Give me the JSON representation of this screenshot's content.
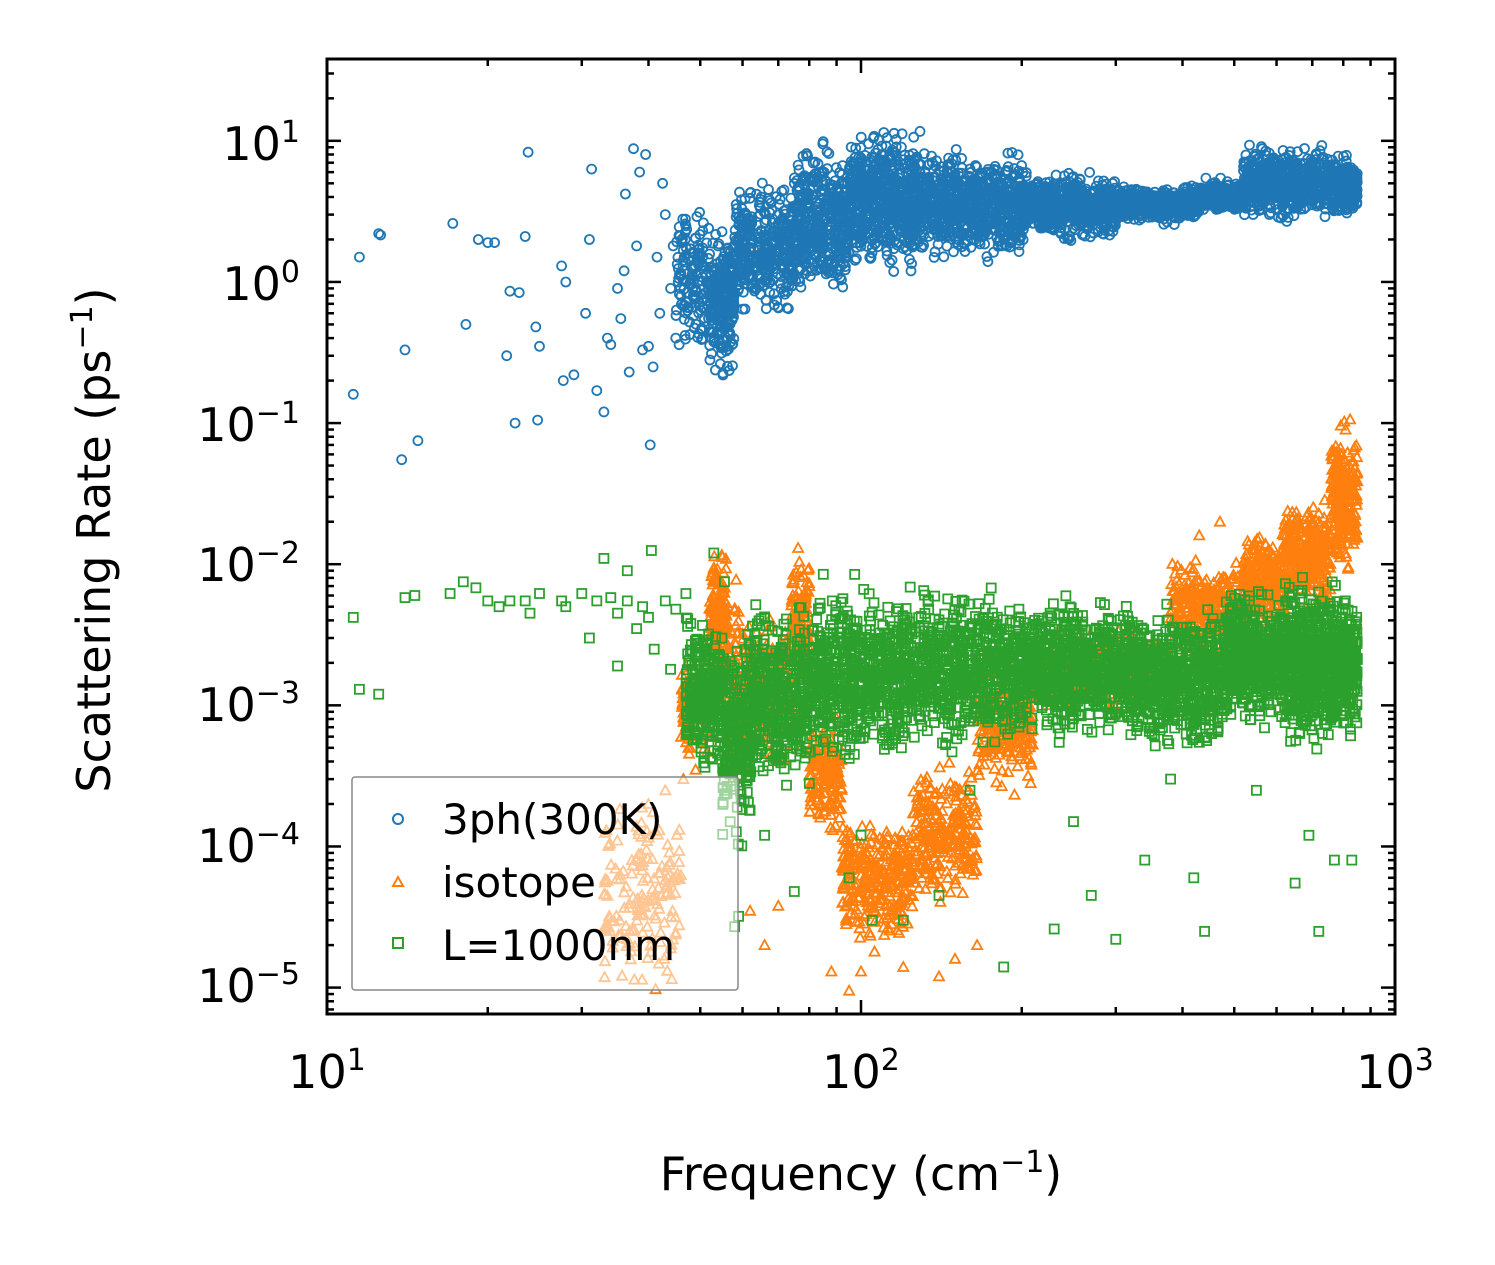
{
  "chart_data": {
    "type": "scatter",
    "title": "",
    "xlabel": "Frequency (cm",
    "xlabel_exp": "−1",
    "xlabel_close": ")",
    "ylabel": "Scattering Rate (ps",
    "ylabel_exp": "−1",
    "ylabel_close": ")",
    "xscale": "log",
    "yscale": "log",
    "xlim": [
      10,
      1000
    ],
    "ylim": [
      6.5e-06,
      38
    ],
    "x_ticks": [
      {
        "value": 10,
        "base": "10",
        "exp": "1"
      },
      {
        "value": 100,
        "base": "10",
        "exp": "2"
      },
      {
        "value": 1000,
        "base": "10",
        "exp": "3"
      }
    ],
    "y_ticks": [
      {
        "value": 10,
        "base": "10",
        "exp": "1"
      },
      {
        "value": 1,
        "base": "10",
        "exp": "0"
      },
      {
        "value": 0.1,
        "base": "10",
        "exp": "−1"
      },
      {
        "value": 0.01,
        "base": "10",
        "exp": "−2"
      },
      {
        "value": 0.001,
        "base": "10",
        "exp": "−3"
      },
      {
        "value": 0.0001,
        "base": "10",
        "exp": "−4"
      },
      {
        "value": 1e-05,
        "base": "10",
        "exp": "−5"
      }
    ],
    "legend_position": "lower-left",
    "series": [
      {
        "name": "3ph(300K)",
        "marker": "circle",
        "color": "#1f77b4",
        "points": [
          [
            11.2,
            0.16
          ],
          [
            11.5,
            1.5
          ],
          [
            12.5,
            2.2
          ],
          [
            13.8,
            0.055
          ],
          [
            14.0,
            0.33
          ],
          [
            14.8,
            0.075
          ],
          [
            17.2,
            2.6
          ],
          [
            18.2,
            0.5
          ],
          [
            19.2,
            2.0
          ],
          [
            20.0,
            1.9
          ],
          [
            20.6,
            1.9
          ],
          [
            21.7,
            0.3
          ],
          [
            22.0,
            0.86
          ],
          [
            22.5,
            0.1
          ],
          [
            22.9,
            0.84
          ],
          [
            23.5,
            2.1
          ],
          [
            23.8,
            8.3
          ],
          [
            24.6,
            0.48
          ],
          [
            24.8,
            0.105
          ],
          [
            25.0,
            0.35
          ],
          [
            27.5,
            1.3
          ],
          [
            27.7,
            0.2
          ],
          [
            28.0,
            1.0
          ],
          [
            29.0,
            0.22
          ],
          [
            30.5,
            0.6
          ],
          [
            31.0,
            2.0
          ],
          [
            31.3,
            6.3
          ],
          [
            32.0,
            0.17
          ],
          [
            33.0,
            0.12
          ],
          [
            33.5,
            0.4
          ],
          [
            34.0,
            0.36
          ],
          [
            35.0,
            0.9
          ],
          [
            35.5,
            0.55
          ],
          [
            36.0,
            1.2
          ],
          [
            36.8,
            0.23
          ],
          [
            37.5,
            8.8
          ],
          [
            38.5,
            6.0
          ],
          [
            39.0,
            0.33
          ],
          [
            39.5,
            8.0
          ],
          [
            40.0,
            0.35
          ],
          [
            40.3,
            0.07
          ],
          [
            40.8,
            0.25
          ],
          [
            41.5,
            1.5
          ],
          [
            42.0,
            0.6
          ],
          [
            43.0,
            3.0
          ],
          [
            44.0,
            0.9
          ],
          [
            45.0,
            0.4
          ],
          [
            46.0,
            1.1
          ],
          [
            47.0,
            2.5
          ],
          [
            12.6,
            2.15
          ],
          [
            42.5,
            5.0
          ],
          [
            44.5,
            1.8
          ],
          [
            38.0,
            1.8
          ],
          [
            36.2,
            4.2
          ]
        ],
        "dense_bands": [
          {
            "x": [
              45,
              52
            ],
            "y": [
              0.25,
              4.5
            ],
            "n": 140
          },
          {
            "x": [
              52,
              58
            ],
            "y": [
              0.18,
              3.0
            ],
            "n": 240
          },
          {
            "x": [
              58,
              75
            ],
            "y": [
              0.45,
              6.0
            ],
            "n": 360
          },
          {
            "x": [
              75,
              95
            ],
            "y": [
              0.6,
              12.0
            ],
            "n": 420
          },
          {
            "x": [
              95,
              130
            ],
            "y": [
              1.0,
              15.0
            ],
            "n": 620
          },
          {
            "x": [
              130,
              200
            ],
            "y": [
              1.2,
              10.0
            ],
            "n": 700
          },
          {
            "x": [
              200,
              300
            ],
            "y": [
              1.8,
              6.5
            ],
            "n": 620
          },
          {
            "x": [
              300,
              430
            ],
            "y": [
              2.5,
              5.0
            ],
            "n": 560
          },
          {
            "x": [
              430,
              520
            ],
            "y": [
              3.0,
              5.5
            ],
            "n": 360
          },
          {
            "x": [
              520,
              820
            ],
            "y": [
              2.5,
              10.0
            ],
            "n": 700
          },
          {
            "x": [
              820,
              850
            ],
            "y": [
              3.0,
              7.0
            ],
            "n": 120
          }
        ]
      },
      {
        "name": "isotope",
        "marker": "triangle",
        "color": "#ff7f0e",
        "points": [
          [
            46.5,
            0.0003
          ],
          [
            47.5,
            0.0005
          ],
          [
            49.0,
            0.00035
          ],
          [
            62.0,
            3.5e-05
          ],
          [
            66.0,
            2e-05
          ],
          [
            70.0,
            3.8e-05
          ],
          [
            88.0,
            1.3e-05
          ],
          [
            95.0,
            9.5e-06
          ],
          [
            100.0,
            1.3e-05
          ],
          [
            106.0,
            1.8e-05
          ],
          [
            120.0,
            1.4e-05
          ],
          [
            140.0,
            1.2e-05
          ],
          [
            150.0,
            1.6e-05
          ],
          [
            165.0,
            2e-05
          ],
          [
            430.0,
            0.016
          ],
          [
            470.0,
            0.02
          ],
          [
            525.0,
            0.011
          ],
          [
            560.0,
            0.0115
          ],
          [
            620.0,
            0.016
          ],
          [
            40.0,
            0.0002
          ],
          [
            43.0,
            0.00025
          ],
          [
            57.5,
            0.0025
          ],
          [
            61.0,
            0.0014
          ],
          [
            122.0,
            8e-05
          ],
          [
            130.0,
            6e-05
          ]
        ],
        "dense_bands": [
          {
            "x": [
              33,
              46
            ],
            "y": [
              6.5e-06,
              0.0003
            ],
            "n": 170
          },
          {
            "x": [
              46,
              52
            ],
            "y": [
              0.0003,
              0.003
            ],
            "n": 120
          },
          {
            "x": [
              52,
              56
            ],
            "y": [
              0.0012,
              0.015
            ],
            "n": 160
          },
          {
            "x": [
              56,
              62
            ],
            "y": [
              0.00015,
              0.01
            ],
            "n": 140
          },
          {
            "x": [
              62,
              75
            ],
            "y": [
              0.0003,
              0.006
            ],
            "n": 180
          },
          {
            "x": [
              74,
              80
            ],
            "y": [
              0.001,
              0.015
            ],
            "n": 120
          },
          {
            "x": [
              80,
              92
            ],
            "y": [
              0.0001,
              0.001
            ],
            "n": 160
          },
          {
            "x": [
              92,
              125
            ],
            "y": [
              1.8e-05,
              0.0002
            ],
            "n": 300
          },
          {
            "x": [
              125,
              165
            ],
            "y": [
              3e-05,
              0.0005
            ],
            "n": 260
          },
          {
            "x": [
              165,
              210
            ],
            "y": [
              0.0002,
              0.003
            ],
            "n": 220
          },
          {
            "x": [
              210,
              380
            ],
            "y": [
              0.0008,
              0.004
            ],
            "n": 340
          },
          {
            "x": [
              380,
              520
            ],
            "y": [
              0.002,
              0.012
            ],
            "n": 260
          },
          {
            "x": [
              520,
              620
            ],
            "y": [
              0.003,
              0.02
            ],
            "n": 240
          },
          {
            "x": [
              620,
              760
            ],
            "y": [
              0.004,
              0.035
            ],
            "n": 280
          },
          {
            "x": [
              760,
              850
            ],
            "y": [
              0.006,
              0.13
            ],
            "n": 240
          }
        ]
      },
      {
        "name": "L=1000nm",
        "marker": "square",
        "color": "#2ca02c",
        "points": [
          [
            11.2,
            0.0042
          ],
          [
            11.5,
            0.0013
          ],
          [
            12.5,
            0.0012
          ],
          [
            14.0,
            0.0058
          ],
          [
            14.6,
            0.006
          ],
          [
            17.0,
            0.0062
          ],
          [
            18.0,
            0.0075
          ],
          [
            19.0,
            0.0068
          ],
          [
            20.0,
            0.0055
          ],
          [
            21.0,
            0.005
          ],
          [
            22.0,
            0.0055
          ],
          [
            23.5,
            0.0055
          ],
          [
            24.0,
            0.0045
          ],
          [
            25.0,
            0.0062
          ],
          [
            27.5,
            0.0055
          ],
          [
            28.0,
            0.005
          ],
          [
            30.0,
            0.0062
          ],
          [
            31.0,
            0.003
          ],
          [
            32.0,
            0.0055
          ],
          [
            33.0,
            0.011
          ],
          [
            34.0,
            0.0058
          ],
          [
            35.0,
            0.0045
          ],
          [
            36.5,
            0.0055
          ],
          [
            38.0,
            0.0035
          ],
          [
            39.0,
            0.005
          ],
          [
            40.0,
            0.0042
          ],
          [
            40.5,
            0.0125
          ],
          [
            41.0,
            0.0025
          ],
          [
            43.0,
            0.0055
          ],
          [
            45.0,
            0.0048
          ],
          [
            47.0,
            0.0062
          ],
          [
            48.0,
            0.0038
          ],
          [
            58.0,
            2.7e-05
          ],
          [
            59.0,
            3.2e-05
          ],
          [
            62.0,
            0.00018
          ],
          [
            66.0,
            0.00012
          ],
          [
            75.0,
            4.8e-05
          ],
          [
            95.0,
            6e-05
          ],
          [
            105.0,
            3e-05
          ],
          [
            120.0,
            3e-05
          ],
          [
            140.0,
            4.5e-05
          ],
          [
            185.0,
            1.4e-05
          ],
          [
            230.0,
            2.6e-05
          ],
          [
            270.0,
            4.5e-05
          ],
          [
            300.0,
            2.2e-05
          ],
          [
            340.0,
            8e-05
          ],
          [
            420.0,
            6e-05
          ],
          [
            440.0,
            2.5e-05
          ],
          [
            650.0,
            5.5e-05
          ],
          [
            720.0,
            2.5e-05
          ],
          [
            770.0,
            8e-05
          ],
          [
            35.0,
            0.0019
          ],
          [
            36.5,
            0.009
          ],
          [
            44.0,
            0.0018
          ],
          [
            53.0,
            0.012
          ],
          [
            55.5,
            0.0075
          ],
          [
            80.0,
            0.00028
          ],
          [
            100.0,
            0.00012
          ],
          [
            160.0,
            0.00025
          ],
          [
            250.0,
            0.00015
          ],
          [
            380.0,
            0.0003
          ],
          [
            550.0,
            0.00025
          ],
          [
            690.0,
            0.00012
          ],
          [
            830.0,
            8e-05
          ]
        ],
        "dense_bands": [
          {
            "x": [
              47,
              55
            ],
            "y": [
              0.0003,
              0.005
            ],
            "n": 260
          },
          {
            "x": [
              55,
              62
            ],
            "y": [
              9e-05,
              0.004
            ],
            "n": 220
          },
          {
            "x": [
              62,
              80
            ],
            "y": [
              0.0002,
              0.007
            ],
            "n": 400
          },
          {
            "x": [
              80,
              120
            ],
            "y": [
              0.0003,
              0.009
            ],
            "n": 600
          },
          {
            "x": [
              120,
              200
            ],
            "y": [
              0.0004,
              0.008
            ],
            "n": 700
          },
          {
            "x": [
              200,
              320
            ],
            "y": [
              0.0005,
              0.007
            ],
            "n": 700
          },
          {
            "x": [
              320,
              480
            ],
            "y": [
              0.0004,
              0.006
            ],
            "n": 600
          },
          {
            "x": [
              480,
              620
            ],
            "y": [
              0.0006,
              0.008
            ],
            "n": 500
          },
          {
            "x": [
              620,
              780
            ],
            "y": [
              0.0004,
              0.01
            ],
            "n": 560
          },
          {
            "x": [
              780,
              850
            ],
            "y": [
              0.0005,
              0.008
            ],
            "n": 220
          }
        ]
      }
    ]
  }
}
